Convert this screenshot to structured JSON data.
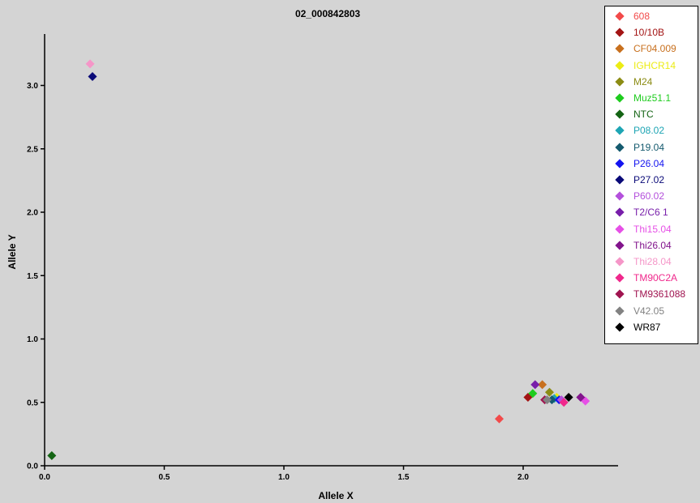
{
  "chart_data": {
    "type": "scatter",
    "title": "02_000842803",
    "xlabel": "Allele X",
    "ylabel": "Allele Y",
    "xlim": [
      0.0,
      2.4
    ],
    "ylim": [
      0.0,
      3.35
    ],
    "xticks": [
      "0.0",
      "0.5",
      "1.0",
      "1.5",
      "2.0"
    ],
    "yticks": [
      "0.0",
      "0.5",
      "1.0",
      "1.5",
      "2.0",
      "2.5",
      "3.0"
    ],
    "legend_position": "top-right",
    "series": [
      {
        "name": "608",
        "color": "#f24a4a",
        "points": [
          [
            1.9,
            0.37
          ]
        ]
      },
      {
        "name": "10/10B",
        "color": "#a31414",
        "points": [
          [
            2.02,
            0.54
          ]
        ]
      },
      {
        "name": "CF04.009",
        "color": "#c8701e",
        "points": [
          [
            2.08,
            0.64
          ]
        ]
      },
      {
        "name": "IGHCR14",
        "color": "#ecec14",
        "points": [
          [
            2.14,
            0.54
          ]
        ]
      },
      {
        "name": "M24",
        "color": "#8c8c14",
        "points": [
          [
            2.11,
            0.58
          ]
        ]
      },
      {
        "name": "Muz51.1",
        "color": "#1ecc1e",
        "points": [
          [
            2.04,
            0.57
          ]
        ]
      },
      {
        "name": "NTC",
        "color": "#146414",
        "points": [
          [
            0.03,
            0.08
          ]
        ]
      },
      {
        "name": "P08.02",
        "color": "#1ea5b4",
        "points": [
          [
            2.13,
            0.53
          ]
        ]
      },
      {
        "name": "P19.04",
        "color": "#145a6e",
        "points": [
          [
            2.12,
            0.52
          ]
        ]
      },
      {
        "name": "P26.04",
        "color": "#1414f0",
        "points": [
          [
            2.15,
            0.52
          ]
        ]
      },
      {
        "name": "P27.02",
        "color": "#0a0a78",
        "points": [
          [
            0.2,
            3.07
          ]
        ]
      },
      {
        "name": "P60.02",
        "color": "#b450dc",
        "points": [
          [
            2.16,
            0.52
          ]
        ]
      },
      {
        "name": "T2/C6 1",
        "color": "#781eaa",
        "points": [
          [
            2.05,
            0.64
          ]
        ]
      },
      {
        "name": "Thi15.04",
        "color": "#e650e6",
        "points": [
          [
            2.26,
            0.51
          ]
        ]
      },
      {
        "name": "Thi26.04",
        "color": "#82148c",
        "points": [
          [
            2.24,
            0.54
          ]
        ]
      },
      {
        "name": "Thi28.04",
        "color": "#f596c8",
        "points": [
          [
            0.19,
            3.17
          ]
        ]
      },
      {
        "name": "TM90C2A",
        "color": "#f0288c",
        "points": [
          [
            2.17,
            0.5
          ]
        ]
      },
      {
        "name": "TM9361088",
        "color": "#a01450",
        "points": [
          [
            2.09,
            0.52
          ]
        ]
      },
      {
        "name": "V42.05",
        "color": "#828282",
        "points": [
          [
            2.1,
            0.52
          ]
        ]
      },
      {
        "name": "WR87",
        "color": "#000000",
        "points": [
          [
            2.19,
            0.54
          ]
        ]
      }
    ]
  }
}
